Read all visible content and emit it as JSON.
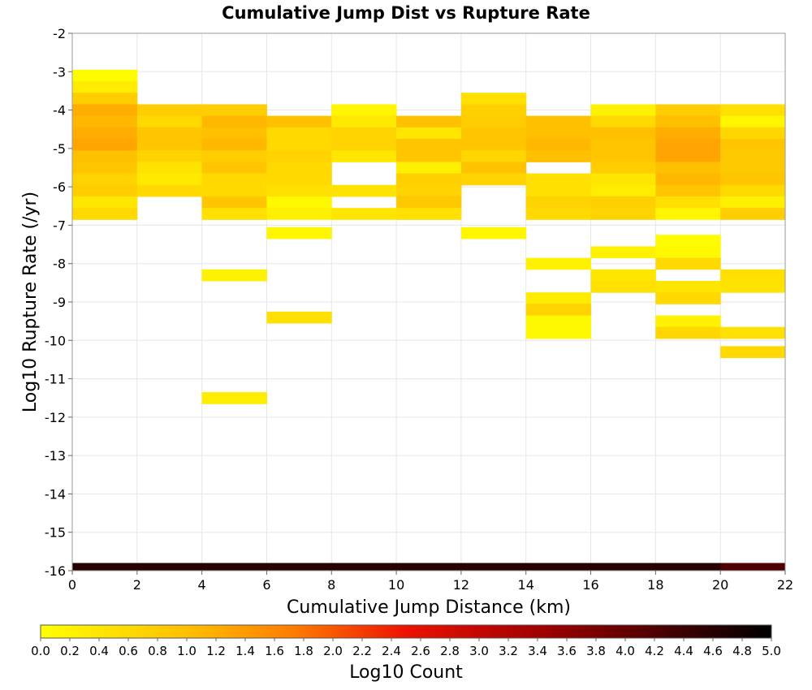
{
  "chart_data": {
    "type": "heatmap",
    "title": "Cumulative Jump Dist vs Rupture Rate",
    "xlabel": "Cumulative Jump Distance (km)",
    "ylabel": "Log10 Rupture Rate (/yr)",
    "xlim": [
      0,
      22
    ],
    "ylim": [
      -16,
      -2
    ],
    "x_ticks": [
      "0",
      "2",
      "4",
      "6",
      "8",
      "10",
      "12",
      "14",
      "16",
      "18",
      "20",
      "22"
    ],
    "y_ticks": [
      "-2",
      "-3",
      "-4",
      "-5",
      "-6",
      "-7",
      "-8",
      "-9",
      "-10",
      "-11",
      "-12",
      "-13",
      "-14",
      "-15",
      "-16"
    ],
    "grid": true,
    "x_bin_width": 2,
    "y_bin_height": 0.3,
    "colorbar": {
      "label": "Log10 Count",
      "range": [
        0,
        5
      ],
      "colormap": "yellow-orange-red-black",
      "ticks": [
        "0.0",
        "0.2",
        "0.4",
        "0.6",
        "0.8",
        "1.0",
        "1.2",
        "1.4",
        "1.6",
        "1.8",
        "2.0",
        "2.2",
        "2.4",
        "2.6",
        "2.8",
        "3.0",
        "3.2",
        "3.4",
        "3.6",
        "3.8",
        "4.0",
        "4.2",
        "4.4",
        "4.6",
        "4.8",
        "5.0"
      ]
    },
    "cells": [
      [
        1,
        -3.1,
        0.05
      ],
      [
        1,
        -3.4,
        0.3
      ],
      [
        1,
        -3.7,
        0.8
      ],
      [
        1,
        -4.0,
        1.2
      ],
      [
        1,
        -4.3,
        1.1
      ],
      [
        1,
        -4.6,
        1.2
      ],
      [
        1,
        -4.9,
        1.3
      ],
      [
        1,
        -5.2,
        1.0
      ],
      [
        1,
        -5.5,
        0.9
      ],
      [
        1,
        -5.8,
        0.7
      ],
      [
        1,
        -6.1,
        0.8
      ],
      [
        1,
        -6.4,
        0.4
      ],
      [
        1,
        -6.7,
        0.6
      ],
      [
        3,
        -4.0,
        0.8
      ],
      [
        3,
        -4.3,
        0.6
      ],
      [
        3,
        -4.6,
        0.9
      ],
      [
        3,
        -4.9,
        0.9
      ],
      [
        3,
        -5.2,
        0.7
      ],
      [
        3,
        -5.5,
        0.45
      ],
      [
        3,
        -5.8,
        0.35
      ],
      [
        3,
        -6.1,
        0.6
      ],
      [
        5,
        -4.0,
        0.8
      ],
      [
        5,
        -4.3,
        1.1
      ],
      [
        5,
        -4.6,
        1.0
      ],
      [
        5,
        -4.9,
        1.1
      ],
      [
        5,
        -5.2,
        0.8
      ],
      [
        5,
        -5.5,
        0.9
      ],
      [
        5,
        -5.8,
        0.6
      ],
      [
        5,
        -6.1,
        0.6
      ],
      [
        5,
        -6.4,
        0.9
      ],
      [
        5,
        -6.7,
        0.5
      ],
      [
        5,
        -8.3,
        0.2
      ],
      [
        5,
        -11.5,
        0.3
      ],
      [
        7,
        -4.3,
        1.0
      ],
      [
        7,
        -4.6,
        0.6
      ],
      [
        7,
        -4.9,
        0.6
      ],
      [
        7,
        -5.2,
        0.7
      ],
      [
        7,
        -5.5,
        0.6
      ],
      [
        7,
        -5.8,
        0.6
      ],
      [
        7,
        -6.1,
        0.5
      ],
      [
        7,
        -6.4,
        0.1
      ],
      [
        7,
        -6.7,
        0.25
      ],
      [
        7,
        -7.2,
        0.15
      ],
      [
        7,
        -9.4,
        0.5
      ],
      [
        9,
        -4.0,
        0.15
      ],
      [
        9,
        -4.3,
        0.35
      ],
      [
        9,
        -4.6,
        0.7
      ],
      [
        9,
        -4.9,
        0.7
      ],
      [
        9,
        -5.2,
        0.4
      ],
      [
        9,
        -6.1,
        0.45
      ],
      [
        9,
        -6.7,
        0.4
      ],
      [
        11,
        -4.3,
        1.0
      ],
      [
        11,
        -4.6,
        0.4
      ],
      [
        11,
        -4.9,
        0.9
      ],
      [
        11,
        -5.2,
        0.9
      ],
      [
        11,
        -5.5,
        0.25
      ],
      [
        11,
        -5.8,
        0.75
      ],
      [
        11,
        -6.1,
        0.7
      ],
      [
        11,
        -6.4,
        0.85
      ],
      [
        11,
        -6.7,
        0.5
      ],
      [
        13,
        -3.7,
        0.5
      ],
      [
        13,
        -4.0,
        0.75
      ],
      [
        13,
        -4.3,
        0.8
      ],
      [
        13,
        -4.6,
        0.9
      ],
      [
        13,
        -4.9,
        0.9
      ],
      [
        13,
        -5.2,
        0.65
      ],
      [
        13,
        -5.5,
        0.95
      ],
      [
        13,
        -5.8,
        0.7
      ],
      [
        13,
        -7.2,
        0.15
      ],
      [
        15,
        -4.3,
        1.0
      ],
      [
        15,
        -4.6,
        1.0
      ],
      [
        15,
        -4.9,
        1.1
      ],
      [
        15,
        -5.2,
        1.0
      ],
      [
        15,
        -5.8,
        0.5
      ],
      [
        15,
        -6.1,
        0.5
      ],
      [
        15,
        -6.4,
        0.7
      ],
      [
        15,
        -6.7,
        0.6
      ],
      [
        15,
        -8.0,
        0.2
      ],
      [
        15,
        -8.9,
        0.3
      ],
      [
        15,
        -9.2,
        0.7
      ],
      [
        15,
        -9.5,
        0.1
      ],
      [
        15,
        -9.8,
        0.1
      ],
      [
        17,
        -4.0,
        0.2
      ],
      [
        17,
        -4.3,
        0.6
      ],
      [
        17,
        -4.6,
        1.0
      ],
      [
        17,
        -4.9,
        0.9
      ],
      [
        17,
        -5.2,
        0.9
      ],
      [
        17,
        -5.5,
        0.8
      ],
      [
        17,
        -5.8,
        0.4
      ],
      [
        17,
        -6.1,
        0.3
      ],
      [
        17,
        -6.4,
        0.75
      ],
      [
        17,
        -6.7,
        0.7
      ],
      [
        17,
        -7.7,
        0.2
      ],
      [
        17,
        -8.3,
        0.4
      ],
      [
        17,
        -8.6,
        0.5
      ],
      [
        19,
        -4.0,
        0.8
      ],
      [
        19,
        -4.3,
        1.0
      ],
      [
        19,
        -4.6,
        1.2
      ],
      [
        19,
        -4.9,
        1.3
      ],
      [
        19,
        -5.2,
        1.3
      ],
      [
        19,
        -5.5,
        1.0
      ],
      [
        19,
        -5.8,
        1.1
      ],
      [
        19,
        -6.1,
        0.9
      ],
      [
        19,
        -6.4,
        0.5
      ],
      [
        19,
        -6.7,
        0.15
      ],
      [
        19,
        -7.4,
        0.05
      ],
      [
        19,
        -7.7,
        0.1
      ],
      [
        19,
        -8.0,
        0.6
      ],
      [
        19,
        -8.6,
        0.4
      ],
      [
        19,
        -8.9,
        0.6
      ],
      [
        19,
        -9.5,
        0.2
      ],
      [
        19,
        -9.8,
        0.65
      ],
      [
        21,
        -4.0,
        0.5
      ],
      [
        21,
        -4.3,
        0.15
      ],
      [
        21,
        -4.6,
        0.65
      ],
      [
        21,
        -4.9,
        0.9
      ],
      [
        21,
        -5.2,
        0.85
      ],
      [
        21,
        -5.5,
        0.85
      ],
      [
        21,
        -5.8,
        0.9
      ],
      [
        21,
        -6.1,
        0.6
      ],
      [
        21,
        -6.4,
        0.25
      ],
      [
        21,
        -6.7,
        0.8
      ],
      [
        21,
        -8.3,
        0.5
      ],
      [
        21,
        -8.6,
        0.45
      ],
      [
        21,
        -9.8,
        0.5
      ],
      [
        21,
        -10.3,
        0.6
      ]
    ],
    "cells_columns": [
      "x_center_km",
      "log10_rate_center",
      "log10_count"
    ],
    "bottom_row": [
      [
        1,
        -15.9,
        4.6
      ],
      [
        3,
        -15.9,
        4.6
      ],
      [
        5,
        -15.9,
        4.6
      ],
      [
        7,
        -15.9,
        4.6
      ],
      [
        9,
        -15.9,
        4.6
      ],
      [
        11,
        -15.9,
        4.6
      ],
      [
        13,
        -15.9,
        4.6
      ],
      [
        15,
        -15.9,
        4.6
      ],
      [
        17,
        -15.9,
        4.6
      ],
      [
        19,
        -15.9,
        4.6
      ],
      [
        21,
        -15.9,
        4.2
      ]
    ]
  }
}
